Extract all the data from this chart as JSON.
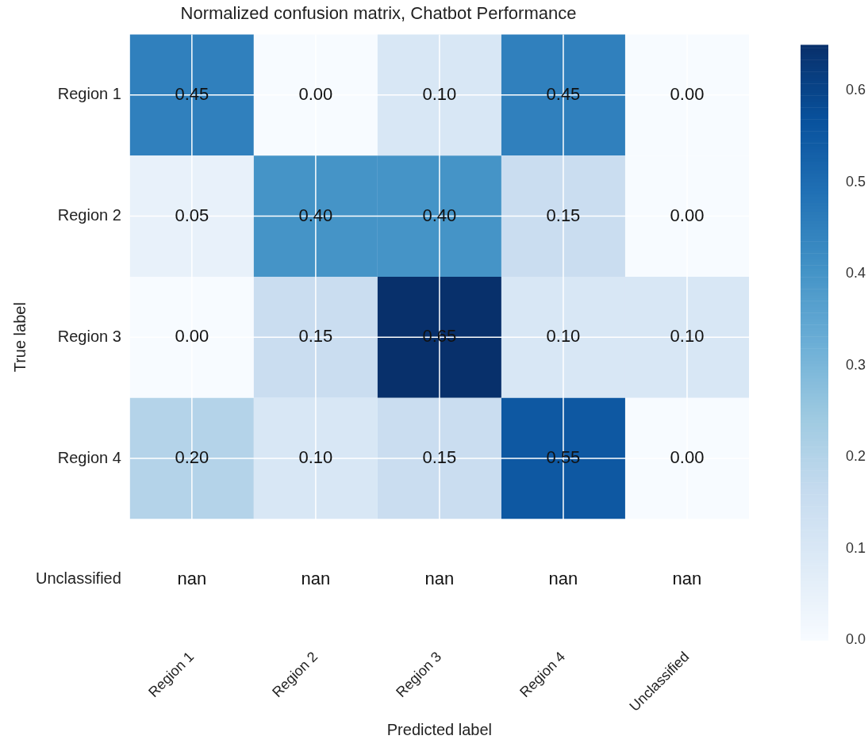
{
  "chart_data": {
    "type": "heatmap",
    "title": "Normalized confusion matrix, Chatbot Performance",
    "xlabel": "Predicted label",
    "ylabel": "True label",
    "categories": [
      "Region 1",
      "Region 2",
      "Region 3",
      "Region 4",
      "Unclassified"
    ],
    "y_categories": [
      "Region 1",
      "Region 2",
      "Region 3",
      "Region 4",
      "Unclassified"
    ],
    "cells": [
      [
        0.45,
        0.0,
        0.1,
        0.45,
        0.0
      ],
      [
        0.05,
        0.4,
        0.4,
        0.15,
        0.0
      ],
      [
        0.0,
        0.15,
        0.65,
        0.1,
        0.1
      ],
      [
        0.2,
        0.1,
        0.15,
        0.55,
        0.0
      ],
      [
        null,
        null,
        null,
        null,
        null
      ]
    ],
    "cell_labels": [
      [
        "0.45",
        "0.00",
        "0.10",
        "0.45",
        "0.00"
      ],
      [
        "0.05",
        "0.40",
        "0.40",
        "0.15",
        "0.00"
      ],
      [
        "0.00",
        "0.15",
        "0.65",
        "0.10",
        "0.10"
      ],
      [
        "0.20",
        "0.10",
        "0.15",
        "0.55",
        "0.00"
      ],
      [
        "nan",
        "nan",
        "nan",
        "nan",
        "nan"
      ]
    ],
    "clim": [
      0,
      0.65
    ],
    "cticks": [
      {
        "value": 0,
        "label": "0.0"
      },
      0.1,
      0.2,
      0.3,
      0.4,
      0.5,
      0.6
    ],
    "grid": true
  }
}
